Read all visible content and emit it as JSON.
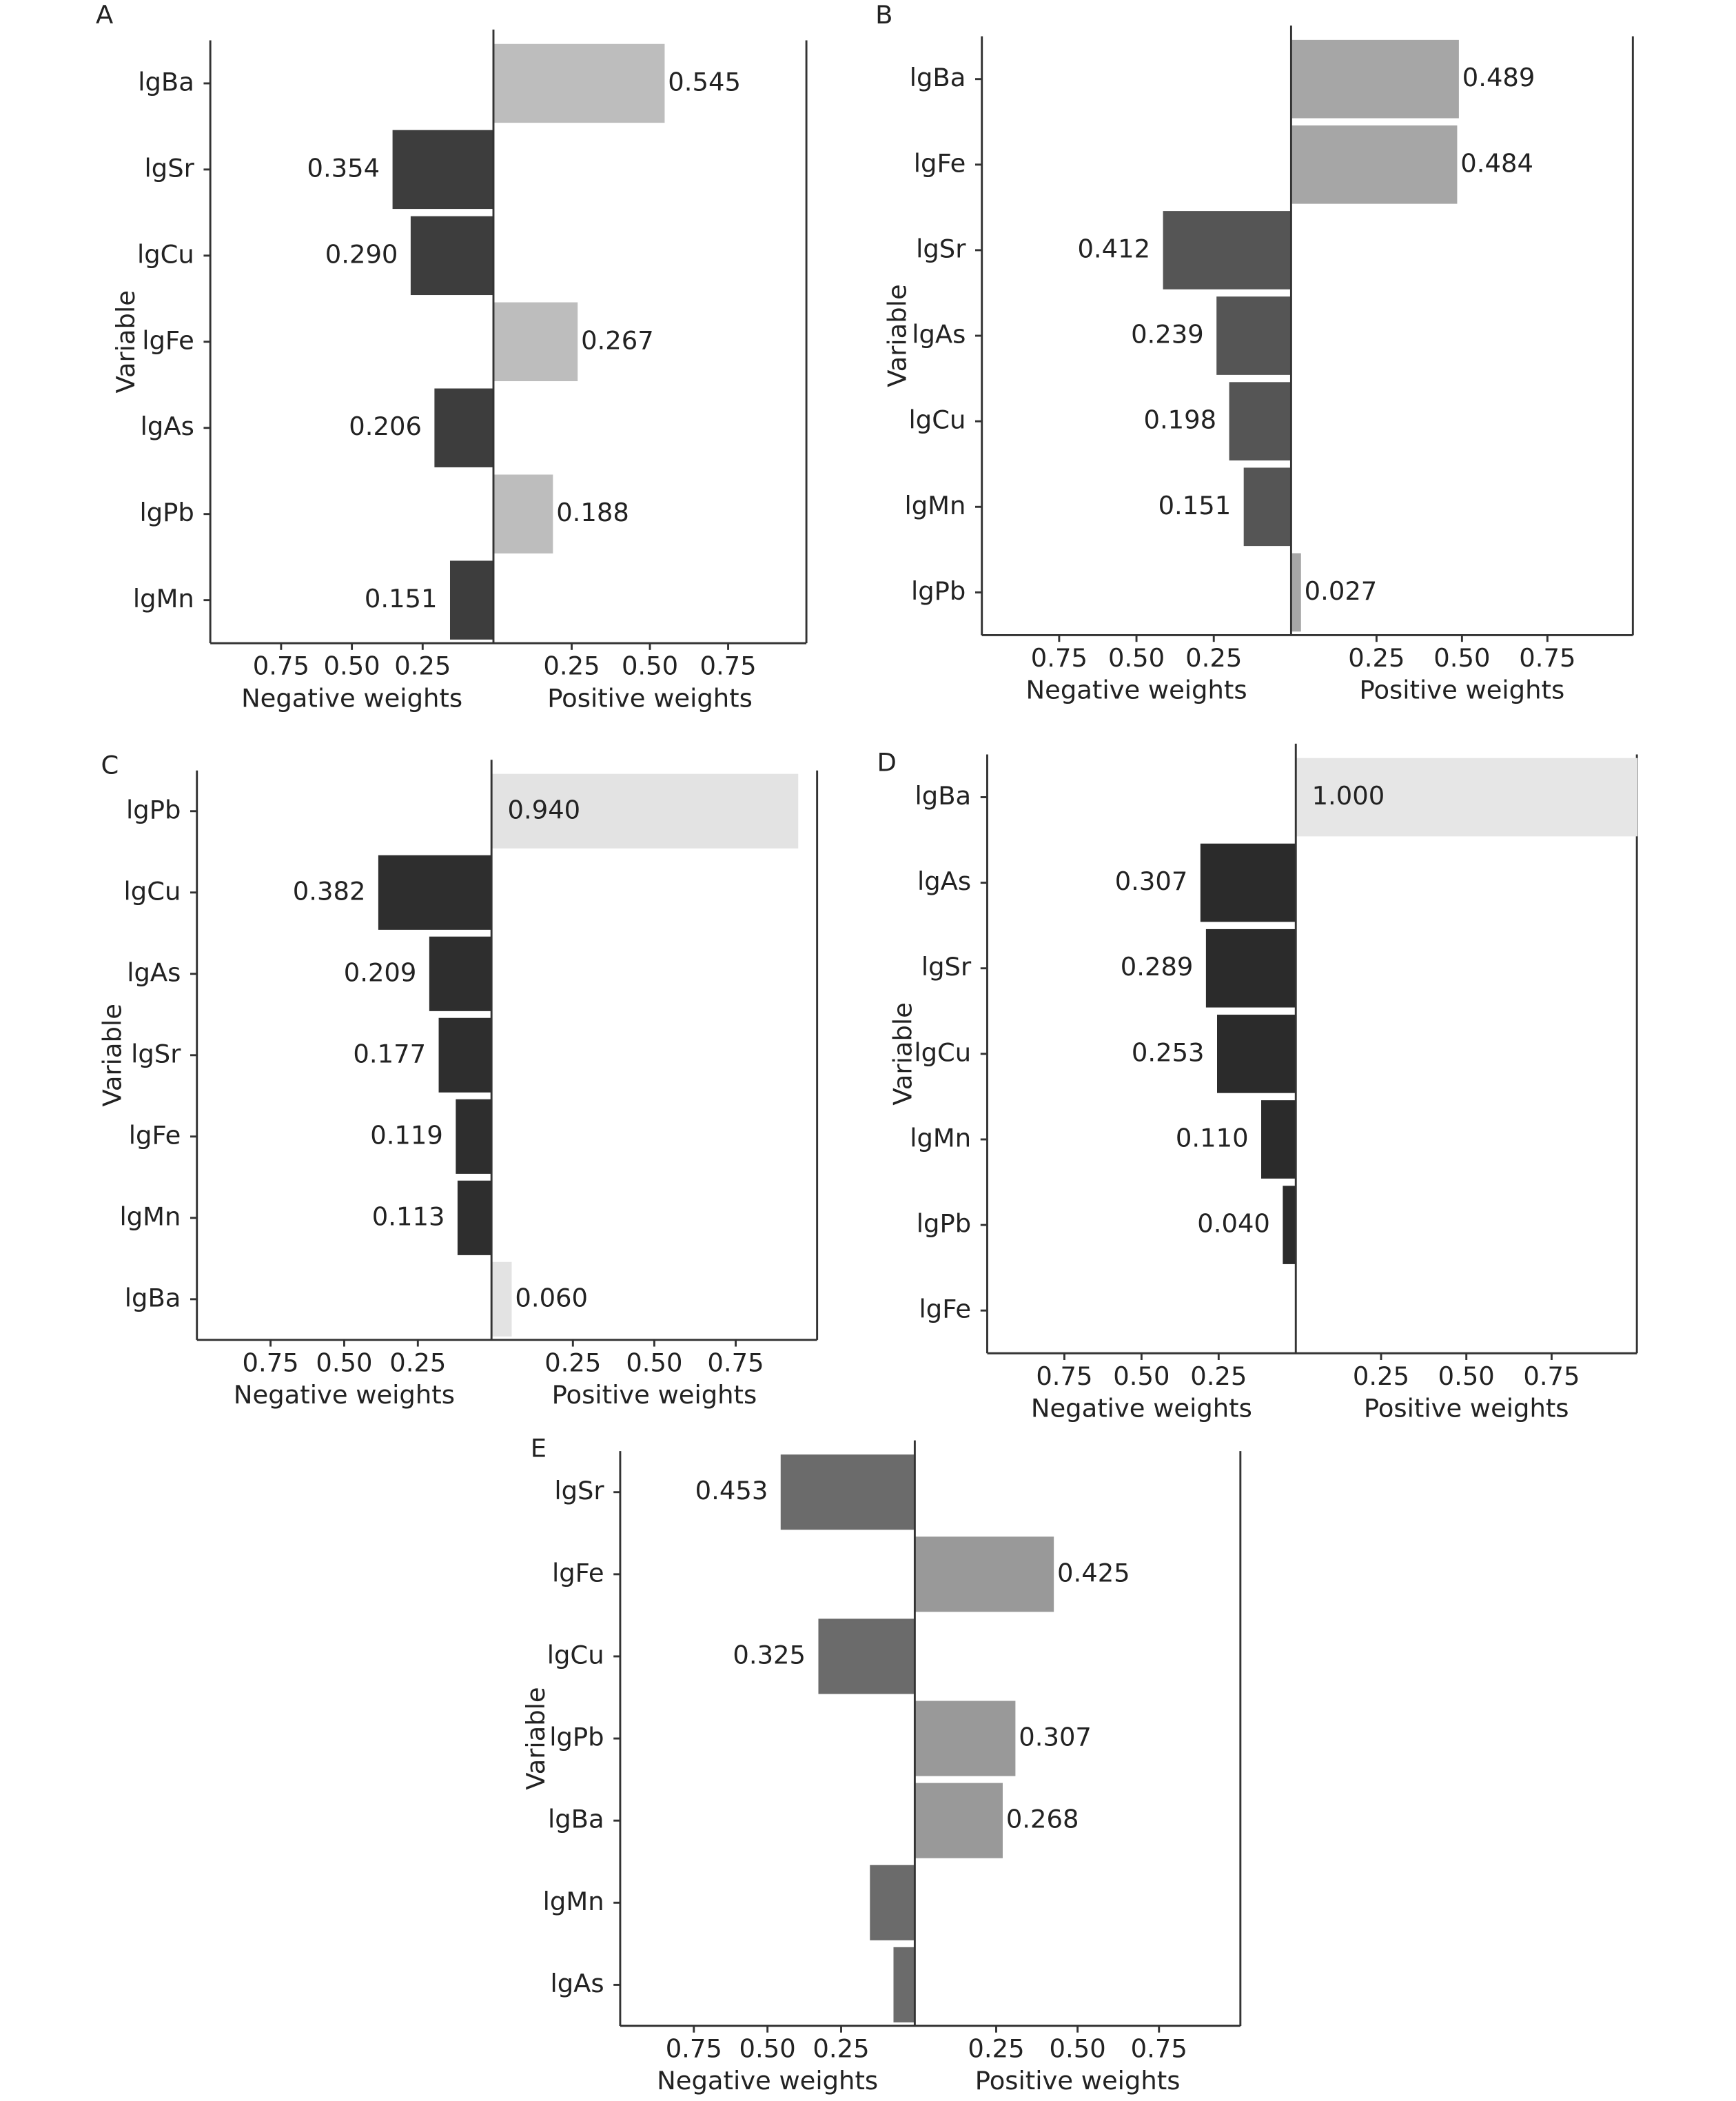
{
  "chart_data": [
    {
      "type": "diverging-bar",
      "title": "A",
      "ylabel": "Variable",
      "categories": [
        "lgBa",
        "lgSr",
        "lgCu",
        "lgFe",
        "lgAs",
        "lgPb",
        "lgMn"
      ],
      "xlim": [
        0,
        1
      ],
      "xticks": [
        0.25,
        {
          "value": 0.5,
          "label": "0.50"
        },
        0.75
      ],
      "series": [
        {
          "name": "Negative weights",
          "side": "negative",
          "color": "#3d3d3d",
          "values": [
            null,
            0.354,
            0.29,
            null,
            0.206,
            null,
            0.151
          ],
          "value_labels": [
            null,
            "0.354",
            "0.290",
            null,
            "0.206",
            null,
            "0.151"
          ]
        },
        {
          "name": "Positive weights",
          "side": "positive",
          "color": "#bdbdbd",
          "values": [
            0.545,
            null,
            null,
            0.267,
            null,
            0.188,
            null
          ],
          "value_labels": [
            "0.545",
            null,
            null,
            "0.267",
            null,
            "0.188",
            null
          ]
        }
      ]
    },
    {
      "type": "diverging-bar",
      "title": "B",
      "ylabel": "Variable",
      "categories": [
        "lgBa",
        "lgFe",
        "lgSr",
        "lgAs",
        "lgCu",
        "lgMn",
        "lgPb"
      ],
      "xlim": [
        0,
        1
      ],
      "xticks": [
        0.25,
        {
          "value": 0.5,
          "label": "0.50"
        },
        0.75
      ],
      "series": [
        {
          "name": "Negative weights",
          "side": "negative",
          "color": "#555555",
          "values": [
            null,
            null,
            0.412,
            0.239,
            0.198,
            0.151,
            null
          ],
          "value_labels": [
            null,
            null,
            "0.412",
            "0.239",
            "0.198",
            "0.151",
            null
          ]
        },
        {
          "name": "Positive weights",
          "side": "positive",
          "color": "#a6a6a6",
          "values": [
            0.489,
            0.484,
            null,
            null,
            null,
            null,
            0.027
          ],
          "value_labels": [
            "0.489",
            "0.484",
            null,
            null,
            null,
            null,
            "0.027"
          ]
        }
      ]
    },
    {
      "type": "diverging-bar",
      "title": "C",
      "ylabel": "Variable",
      "categories": [
        "lgPb",
        "lgCu",
        "lgAs",
        "lgSr",
        "lgFe",
        "lgMn",
        "lgBa"
      ],
      "xlim": [
        0,
        1
      ],
      "xticks": [
        0.25,
        {
          "value": 0.5,
          "label": "0.50"
        },
        0.75
      ],
      "series": [
        {
          "name": "Negative weights",
          "side": "negative",
          "color": "#2e2e2e",
          "values": [
            null,
            0.382,
            0.209,
            0.177,
            0.119,
            0.113,
            null
          ],
          "value_labels": [
            null,
            "0.382",
            "0.209",
            "0.177",
            "0.119",
            "0.113",
            null
          ]
        },
        {
          "name": "Positive weights",
          "side": "positive",
          "color": "#e3e3e3",
          "values": [
            0.94,
            null,
            null,
            null,
            null,
            null,
            0.06
          ],
          "value_labels": [
            "0.940",
            null,
            null,
            null,
            null,
            null,
            "0.060"
          ]
        }
      ]
    },
    {
      "type": "diverging-bar",
      "title": "D",
      "ylabel": "Variable",
      "categories": [
        "lgBa",
        "lgAs",
        "lgSr",
        "lgCu",
        "lgMn",
        "lgPb",
        "lgFe"
      ],
      "xlim": [
        0,
        1
      ],
      "xticks": [
        0.25,
        {
          "value": 0.5,
          "label": "0.50"
        },
        0.75
      ],
      "series": [
        {
          "name": "Negative weights",
          "side": "negative",
          "color": "#2b2b2b",
          "values": [
            null,
            0.307,
            0.289,
            0.253,
            0.11,
            0.04,
            null
          ],
          "value_labels": [
            null,
            "0.307",
            "0.289",
            "0.253",
            "0.110",
            "0.040",
            null
          ]
        },
        {
          "name": "Positive weights",
          "side": "positive",
          "color": "#e6e6e6",
          "values": [
            1.0,
            null,
            null,
            null,
            null,
            null,
            null
          ],
          "value_labels": [
            "1.000",
            null,
            null,
            null,
            null,
            null,
            null
          ]
        }
      ]
    },
    {
      "type": "diverging-bar",
      "title": "E",
      "ylabel": "Variable",
      "categories": [
        "lgSr",
        "lgFe",
        "lgCu",
        "lgPb",
        "lgBa",
        "lgMn",
        "lgAs"
      ],
      "xlim": [
        0,
        1
      ],
      "xticks": [
        0.25,
        {
          "value": 0.5,
          "label": "0.50"
        },
        0.75
      ],
      "series": [
        {
          "name": "Negative weights",
          "side": "negative",
          "color": "#6b6b6b",
          "values": [
            0.453,
            null,
            0.325,
            null,
            null,
            0.15,
            0.07
          ],
          "value_labels": [
            "0.453",
            null,
            "0.325",
            null,
            null,
            null,
            null
          ]
        },
        {
          "name": "Positive weights",
          "side": "positive",
          "color": "#999999",
          "values": [
            null,
            0.425,
            null,
            0.307,
            0.268,
            null,
            null
          ],
          "value_labels": [
            null,
            "0.425",
            null,
            "0.307",
            "0.268",
            null,
            null
          ]
        }
      ]
    }
  ]
}
